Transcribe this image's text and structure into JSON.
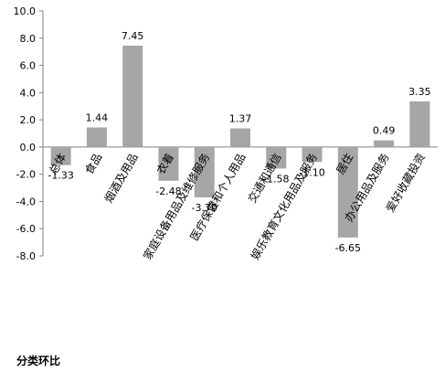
{
  "chart_data": {
    "type": "bar",
    "title": "分类环比",
    "categories": [
      "总体",
      "食品",
      "烟酒及用品",
      "衣着",
      "家庭设备用品及维修服务",
      "医疗保健和个人用品",
      "交通和通信",
      "娱乐教育文化用品及服务",
      "居住",
      "办公用品及服务",
      "爱好收藏投资"
    ],
    "values": [
      -1.33,
      1.44,
      7.45,
      -2.48,
      -3.7,
      1.37,
      -1.58,
      -1.1,
      -6.65,
      0.49,
      3.35
    ],
    "value_labels": [
      "-1.33",
      "1.44",
      "7.45",
      "-2.48",
      "-3.70",
      "1.37",
      "-1.58",
      "-1.10",
      "-6.65",
      "0.49",
      "3.35"
    ],
    "ylim": [
      -8.0,
      10.0
    ],
    "yticks": [
      "10.0",
      "8.0",
      "6.0",
      "4.0",
      "2.0",
      "0.0",
      "-2.0",
      "-4.0",
      "-6.0",
      "-8.0"
    ],
    "ytick_values": [
      10,
      8,
      6,
      4,
      2,
      0,
      -2,
      -4,
      -6,
      -8
    ],
    "grid": false,
    "legend": "none",
    "bar_color": "#a6a6a6",
    "axis_color": "#808080"
  }
}
